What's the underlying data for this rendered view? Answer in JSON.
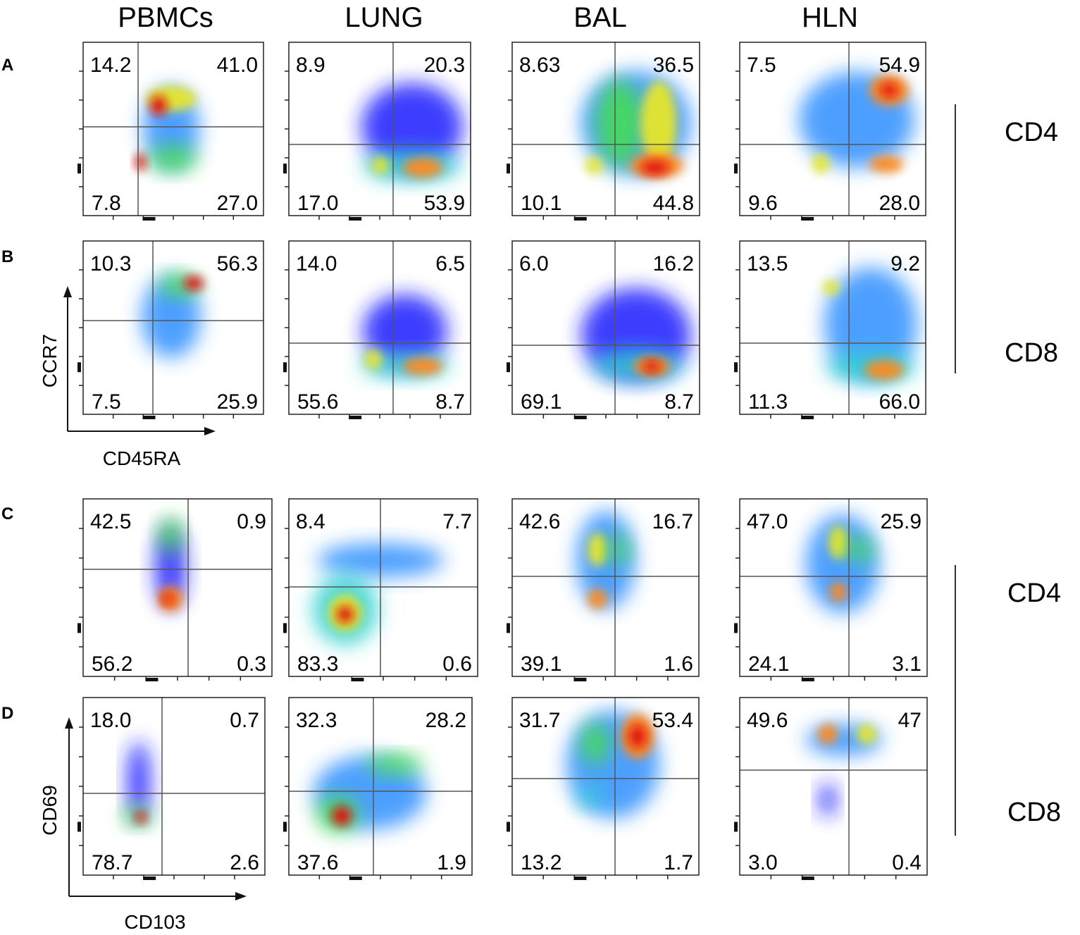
{
  "columns": [
    "PBMCs",
    "LUNG",
    "BAL",
    "HLN"
  ],
  "row_labels": [
    "A",
    "B",
    "C",
    "D"
  ],
  "groups": [
    {
      "label": "CD4"
    },
    {
      "label": "CD8"
    },
    {
      "label": "CD4"
    },
    {
      "label": "CD8"
    }
  ],
  "axis_labels": {
    "top_x": "CD45RA",
    "top_y": "CCR7",
    "bottom_x": "CD103",
    "bottom_y": "CD69"
  },
  "colors": {
    "density_scale": [
      "#1a1aff",
      "#2f8fff",
      "#2fd0d0",
      "#44e04a",
      "#e6e62a",
      "#ff8a1a",
      "#e01010"
    ],
    "gate_line": "#555555",
    "frame": "#222222"
  },
  "chart_data": [
    {
      "type": "flow-cytometry-density-quadrant",
      "row": "A",
      "population": "CD4",
      "xlabel": "CD45RA",
      "ylabel": "CCR7",
      "panels": [
        {
          "tissue": "PBMCs",
          "quadrants": {
            "UL": "14.2",
            "UR": "41.0",
            "LL": "7.8",
            "LR": "27.0"
          }
        },
        {
          "tissue": "LUNG",
          "quadrants": {
            "UL": "8.9",
            "UR": "20.3",
            "LL": "17.0",
            "LR": "53.9"
          }
        },
        {
          "tissue": "BAL",
          "quadrants": {
            "UL": "8.63",
            "UR": "36.5",
            "LL": "10.1",
            "LR": "44.8"
          }
        },
        {
          "tissue": "HLN",
          "quadrants": {
            "UL": "7.5",
            "UR": "54.9",
            "LL": "9.6",
            "LR": "28.0"
          }
        }
      ]
    },
    {
      "type": "flow-cytometry-density-quadrant",
      "row": "B",
      "population": "CD8",
      "xlabel": "CD45RA",
      "ylabel": "CCR7",
      "panels": [
        {
          "tissue": "PBMCs",
          "quadrants": {
            "UL": "10.3",
            "UR": "56.3",
            "LL": "7.5",
            "LR": "25.9"
          }
        },
        {
          "tissue": "LUNG",
          "quadrants": {
            "UL": "14.0",
            "UR": "6.5",
            "LL": "55.6",
            "LR": "8.7"
          }
        },
        {
          "tissue": "BAL",
          "quadrants": {
            "UL": "6.0",
            "UR": "16.2",
            "LL": "69.1",
            "LR": "8.7"
          }
        },
        {
          "tissue": "HLN",
          "quadrants": {
            "UL": "13.5",
            "UR": "9.2",
            "LL": "11.3",
            "LR": "66.0"
          }
        }
      ]
    },
    {
      "type": "flow-cytometry-density-quadrant",
      "row": "C",
      "population": "CD4",
      "xlabel": "CD103",
      "ylabel": "CD69",
      "panels": [
        {
          "tissue": "PBMCs",
          "quadrants": {
            "UL": "42.5",
            "UR": "0.9",
            "LL": "56.2",
            "LR": "0.3"
          }
        },
        {
          "tissue": "LUNG",
          "quadrants": {
            "UL": "8.4",
            "UR": "7.7",
            "LL": "83.3",
            "LR": "0.6"
          }
        },
        {
          "tissue": "BAL",
          "quadrants": {
            "UL": "42.6",
            "UR": "16.7",
            "LL": "39.1",
            "LR": "1.6"
          }
        },
        {
          "tissue": "HLN",
          "quadrants": {
            "UL": "47.0",
            "UR": "25.9",
            "LL": "24.1",
            "LR": "3.1"
          }
        }
      ]
    },
    {
      "type": "flow-cytometry-density-quadrant",
      "row": "D",
      "population": "CD8",
      "xlabel": "CD103",
      "ylabel": "CD69",
      "panels": [
        {
          "tissue": "PBMCs",
          "quadrants": {
            "UL": "18.0",
            "UR": "0.7",
            "LL": "78.7",
            "LR": "2.6"
          }
        },
        {
          "tissue": "LUNG",
          "quadrants": {
            "UL": "32.3",
            "UR": "28.2",
            "LL": "37.6",
            "LR": "1.9"
          }
        },
        {
          "tissue": "BAL",
          "quadrants": {
            "UL": "31.7",
            "UR": "53.4",
            "LL": "13.2",
            "LR": "1.7"
          }
        },
        {
          "tissue": "HLN",
          "quadrants": {
            "UL": "49.6",
            "UR": "47",
            "LL": "3.0",
            "LR": "0.4"
          }
        }
      ]
    }
  ]
}
